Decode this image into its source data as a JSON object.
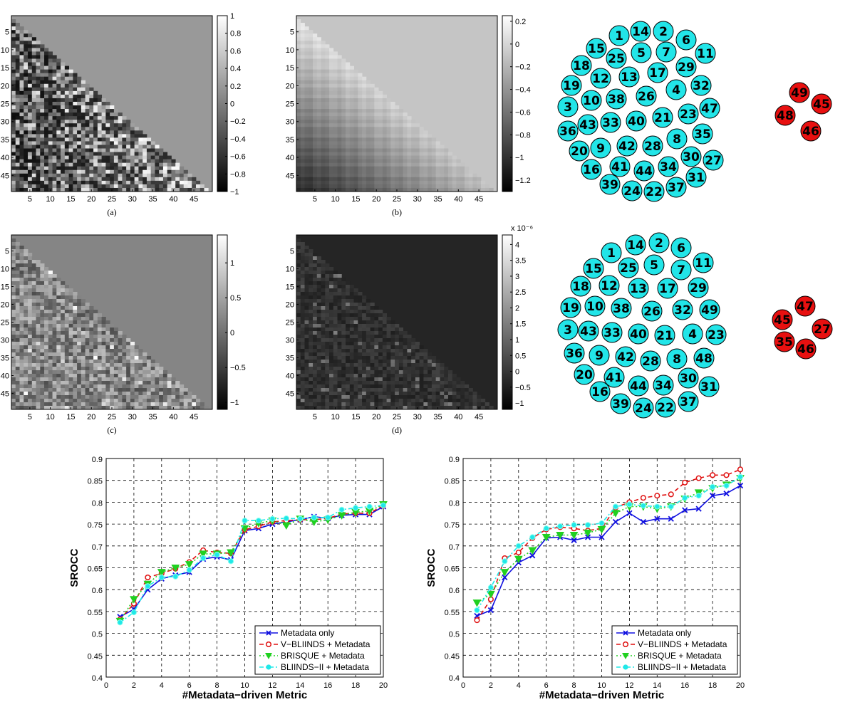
{
  "heatmaps": [
    {
      "id": "a",
      "caption": "(a)",
      "style": "noise_dark",
      "colorbar": {
        "ticks": [
          "1",
          "0.8",
          "0.6",
          "0.4",
          "0.2",
          "0",
          "−0.2",
          "−0.4",
          "−0.6",
          "−0.8",
          "−1"
        ],
        "values": [
          1,
          0.8,
          0.6,
          0.4,
          0.2,
          0,
          -0.2,
          -0.4,
          -0.6,
          -0.8,
          -1
        ],
        "min": -1,
        "max": 1,
        "exponent": ""
      },
      "upper_value": 0.2
    },
    {
      "id": "b",
      "caption": "(b)",
      "style": "smooth",
      "colorbar": {
        "ticks": [
          "0.2",
          "0",
          "−0.2",
          "−0.4",
          "−0.6",
          "−0.8",
          "−1",
          "−1.2"
        ],
        "values": [
          0.2,
          0,
          -0.2,
          -0.4,
          -0.6,
          -0.8,
          -1,
          -1.2
        ],
        "min": -1.3,
        "max": 0.25,
        "exponent": ""
      },
      "upper_value": -0.1
    },
    {
      "id": "c",
      "caption": "(c)",
      "style": "noise_mid",
      "colorbar": {
        "ticks": [
          "1",
          "0.5",
          "0",
          "−0.5",
          "−1"
        ],
        "values": [
          1,
          0.5,
          0,
          -0.5,
          -1
        ],
        "min": -1.1,
        "max": 1.4,
        "exponent": ""
      },
      "upper_value": 0.2
    },
    {
      "id": "d",
      "caption": "(d)",
      "style": "sparse",
      "colorbar": {
        "ticks": [
          "4",
          "3.5",
          "3",
          "2.5",
          "2",
          "1.5",
          "1",
          "0.5",
          "0",
          "−0.5",
          "−1"
        ],
        "values": [
          4,
          3.5,
          3,
          2.5,
          2,
          1.5,
          1,
          0.5,
          0,
          -0.5,
          -1
        ],
        "min": -1.2,
        "max": 4.3,
        "exponent": "x 10⁻⁶"
      },
      "upper_value": -0.4
    }
  ],
  "heatmap_axis": {
    "n": 49,
    "x_ticks": [
      5,
      10,
      15,
      20,
      25,
      30,
      35,
      40,
      45
    ],
    "y_ticks": [
      5,
      10,
      15,
      20,
      25,
      30,
      35,
      40,
      45
    ]
  },
  "clusters": [
    {
      "big_ids": [
        1,
        14,
        2,
        6,
        15,
        25,
        5,
        7,
        11,
        18,
        12,
        13,
        17,
        29,
        19,
        10,
        38,
        26,
        4,
        32,
        3,
        47,
        43,
        33,
        40,
        21,
        23,
        36,
        8,
        35,
        20,
        9,
        42,
        28,
        30,
        27,
        16,
        41,
        44,
        34,
        31,
        39,
        24,
        22,
        37
      ],
      "small_ids": [
        49,
        45,
        48,
        46
      ],
      "big_color": "#22e5e8",
      "small_color": "#e81010"
    },
    {
      "big_ids": [
        14,
        2,
        1,
        6,
        25,
        5,
        7,
        11,
        15,
        18,
        12,
        13,
        17,
        29,
        19,
        10,
        38,
        26,
        32,
        49,
        3,
        43,
        33,
        40,
        21,
        4,
        23,
        36,
        9,
        42,
        28,
        8,
        48,
        20,
        41,
        30,
        31,
        16,
        44,
        34,
        39,
        24,
        22,
        37
      ],
      "small_ids": [
        47,
        45,
        27,
        35,
        46
      ],
      "big_color": "#22e5e8",
      "small_color": "#e81010"
    }
  ],
  "chart_data": [
    {
      "type": "line",
      "title": "",
      "xlabel": "#Metadata−driven Metric",
      "ylabel": "SROCC",
      "xlim": [
        0,
        20
      ],
      "ylim": [
        0.4,
        0.9
      ],
      "x_ticks": [
        0,
        2,
        4,
        6,
        8,
        10,
        12,
        14,
        16,
        18,
        20
      ],
      "y_ticks": [
        "0.4",
        "0.45",
        "0.5",
        "0.55",
        "0.6",
        "0.65",
        "0.7",
        "0.75",
        "0.8",
        "0.85",
        "0.9"
      ],
      "grid": true,
      "legend_position": "bottom-right",
      "x": [
        1,
        2,
        3,
        4,
        5,
        6,
        7,
        8,
        9,
        10,
        11,
        12,
        13,
        14,
        15,
        16,
        17,
        18,
        19,
        20
      ],
      "series": [
        {
          "name": "Metadata only",
          "color": "#1010e0",
          "marker": "x",
          "dash": "",
          "values": [
            0.538,
            0.555,
            0.6,
            0.625,
            0.633,
            0.64,
            0.67,
            0.675,
            0.668,
            0.735,
            0.74,
            0.75,
            0.755,
            0.76,
            0.767,
            0.763,
            0.77,
            0.772,
            0.772,
            0.79
          ]
        },
        {
          "name": "V−BLIINDS + Metadata",
          "color": "#e01010",
          "marker": "o",
          "dash": "6,4",
          "values": [
            0.532,
            0.568,
            0.628,
            0.637,
            0.648,
            0.663,
            0.69,
            0.685,
            0.683,
            0.737,
            0.745,
            0.755,
            0.758,
            0.76,
            0.76,
            0.763,
            0.773,
            0.775,
            0.775,
            0.792
          ]
        },
        {
          "name": "BRISQUE + Metadata",
          "color": "#20d020",
          "marker": "v",
          "dash": "2,3",
          "values": [
            0.528,
            0.578,
            0.613,
            0.64,
            0.65,
            0.658,
            0.682,
            0.682,
            0.685,
            0.74,
            0.752,
            0.758,
            0.747,
            0.762,
            0.755,
            0.76,
            0.77,
            0.777,
            0.78,
            0.795
          ]
        },
        {
          "name": "BLIINDS−II + Metadata",
          "color": "#20e8e8",
          "marker": "o",
          "dash": "6,3,2,3",
          "values": [
            0.525,
            0.548,
            0.608,
            0.628,
            0.63,
            0.645,
            0.672,
            0.68,
            0.665,
            0.758,
            0.758,
            0.762,
            0.763,
            0.762,
            0.765,
            0.765,
            0.783,
            0.787,
            0.79,
            0.793
          ]
        }
      ]
    },
    {
      "type": "line",
      "title": "",
      "xlabel": "#Metadata−driven Metric",
      "ylabel": "SROCC",
      "xlim": [
        0,
        20
      ],
      "ylim": [
        0.4,
        0.9
      ],
      "x_ticks": [
        0,
        2,
        4,
        6,
        8,
        10,
        12,
        14,
        16,
        18,
        20
      ],
      "y_ticks": [
        "0.4",
        "0.45",
        "0.5",
        "0.55",
        "0.6",
        "0.65",
        "0.7",
        "0.75",
        "0.8",
        "0.85",
        "0.9"
      ],
      "grid": true,
      "legend_position": "bottom-right",
      "x": [
        1,
        2,
        3,
        4,
        5,
        6,
        7,
        8,
        9,
        10,
        11,
        12,
        13,
        14,
        15,
        16,
        17,
        18,
        19,
        20
      ],
      "series": [
        {
          "name": "Metadata only",
          "color": "#1010e0",
          "marker": "x",
          "dash": "",
          "values": [
            0.54,
            0.553,
            0.628,
            0.662,
            0.678,
            0.718,
            0.72,
            0.713,
            0.72,
            0.72,
            0.755,
            0.775,
            0.755,
            0.762,
            0.762,
            0.782,
            0.785,
            0.815,
            0.82,
            0.838
          ]
        },
        {
          "name": "V−BLIINDS + Metadata",
          "color": "#e01010",
          "marker": "o",
          "dash": "6,4",
          "values": [
            0.53,
            0.578,
            0.672,
            0.685,
            0.718,
            0.738,
            0.743,
            0.74,
            0.735,
            0.74,
            0.788,
            0.8,
            0.81,
            0.815,
            0.818,
            0.845,
            0.855,
            0.862,
            0.862,
            0.875
          ]
        },
        {
          "name": "BRISQUE + Metadata",
          "color": "#20d020",
          "marker": "v",
          "dash": "2,3",
          "values": [
            0.57,
            0.59,
            0.64,
            0.67,
            0.69,
            0.72,
            0.725,
            0.725,
            0.73,
            0.738,
            0.775,
            0.79,
            0.79,
            0.785,
            0.79,
            0.808,
            0.822,
            0.832,
            0.84,
            0.855
          ]
        },
        {
          "name": "BLIINDS−II + Metadata",
          "color": "#20e8e8",
          "marker": "o",
          "dash": "6,3,2,3",
          "values": [
            0.553,
            0.605,
            0.665,
            0.7,
            0.72,
            0.74,
            0.745,
            0.748,
            0.748,
            0.752,
            0.79,
            0.795,
            0.792,
            0.79,
            0.79,
            0.81,
            0.815,
            0.835,
            0.838,
            0.858
          ]
        }
      ]
    }
  ]
}
